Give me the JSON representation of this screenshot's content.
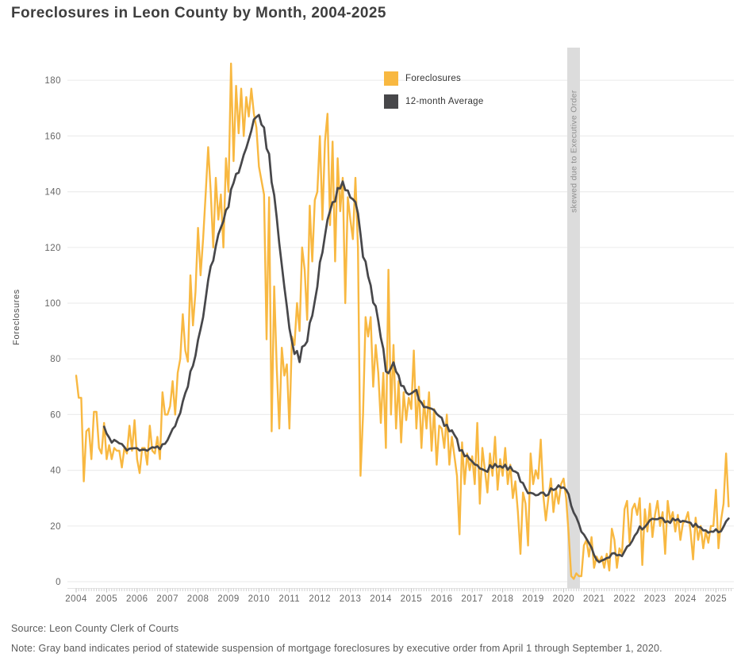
{
  "title": "Foreclosures in Leon County by Month, 2004-2025",
  "footer": {
    "source": "Source: Leon County Clerk of Courts",
    "note": "Note: Gray band indicates period of statewide suspension of mortgage foreclosures by executive order from April 1 through September 1, 2020."
  },
  "chart_data": {
    "type": "line",
    "title": "Foreclosures in Leon County by Month, 2004-2025",
    "xlabel": "",
    "ylabel": "Foreclosures",
    "grid": "horizontal",
    "legend_position": "top-center",
    "ylim": [
      0,
      192
    ],
    "yticks": [
      0,
      20,
      40,
      60,
      80,
      100,
      120,
      140,
      160,
      180
    ],
    "x_start_month": "2004-01",
    "x_end_month": "2025-06",
    "x_tick_labels": [
      "2004",
      "2005",
      "2006",
      "2007",
      "2008",
      "2009",
      "2010",
      "2011",
      "2012",
      "2013",
      "2014",
      "2015",
      "2016",
      "2017",
      "2018",
      "2019",
      "2020",
      "2021",
      "2022",
      "2023",
      "2024",
      "2025"
    ],
    "annotation_band": {
      "label": "skewed due to Executive Order",
      "from": "2020-04",
      "to": "2020-09",
      "color": "#dcdcdc",
      "label_color": "#8f8f8f"
    },
    "series": [
      {
        "name": "Foreclosures",
        "color": "#F8B841",
        "unit": "foreclosures per month",
        "values": [
          74,
          66,
          66,
          36,
          54,
          55,
          44,
          61,
          61,
          48,
          46,
          57,
          44,
          49,
          44,
          48,
          47,
          47,
          41,
          48,
          46,
          56,
          47,
          58,
          44,
          39,
          48,
          48,
          42,
          56,
          47,
          46,
          52,
          44,
          68,
          60,
          60,
          63,
          72,
          60,
          75,
          80,
          96,
          83,
          79,
          110,
          92,
          104,
          127,
          110,
          123,
          139,
          156,
          140,
          120,
          145,
          130,
          139,
          120,
          152,
          140,
          186,
          151,
          178,
          161,
          177,
          160,
          174,
          167,
          177,
          168,
          163,
          149,
          144,
          139,
          87,
          138,
          54,
          106,
          77,
          55,
          84,
          74,
          78,
          55,
          88,
          85,
          100,
          90,
          120,
          112,
          94,
          135,
          115,
          137,
          140,
          160,
          130,
          158,
          168,
          128,
          158,
          115,
          152,
          133,
          145,
          100,
          138,
          130,
          123,
          145,
          120,
          38,
          60,
          95,
          88,
          95,
          70,
          85,
          75,
          57,
          75,
          48,
          112,
          60,
          85,
          55,
          72,
          50,
          68,
          58,
          66,
          62,
          83,
          55,
          70,
          48,
          65,
          55,
          68,
          47,
          62,
          42,
          56,
          55,
          48,
          60,
          42,
          52,
          45,
          38,
          17,
          50,
          35,
          46,
          40,
          45,
          35,
          57,
          28,
          48,
          40,
          32,
          46,
          38,
          52,
          33,
          44,
          38,
          48,
          35,
          42,
          30,
          36,
          25,
          10,
          32,
          28,
          13,
          46,
          35,
          40,
          37,
          51,
          31,
          22,
          30,
          37,
          25,
          33,
          28,
          35,
          37,
          30,
          17,
          2,
          1,
          3,
          2,
          2,
          13,
          15,
          9,
          16,
          5,
          9,
          7,
          9,
          5,
          10,
          4,
          19,
          15,
          5,
          12,
          10,
          26,
          29,
          14,
          26,
          28,
          24,
          30,
          6,
          26,
          18,
          28,
          16,
          24,
          29,
          20,
          25,
          10,
          29,
          22,
          25,
          18,
          24,
          15,
          21,
          22,
          25,
          18,
          8,
          23,
          15,
          20,
          12,
          18,
          14,
          20,
          20,
          33,
          12,
          22,
          28,
          46,
          27
        ]
      },
      {
        "name": "12-month Average",
        "color": "#47474A",
        "derivation": "trailing 12-month mean of the Foreclosures series, plotted from Dec 2004 onward"
      }
    ],
    "axis_text_color": "#666666",
    "gridline_color": "#ededed",
    "tick_color": "#cfcfcf"
  }
}
